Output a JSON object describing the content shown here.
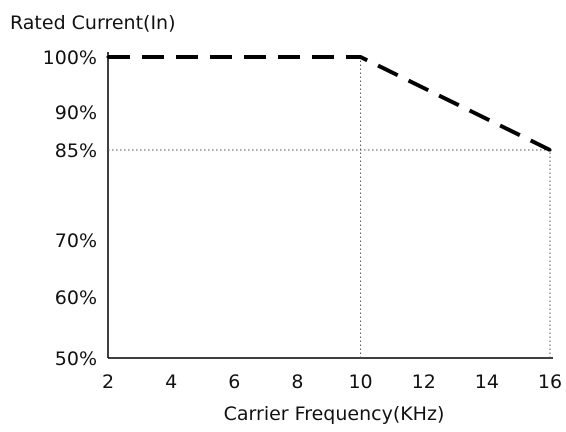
{
  "chart_data": {
    "type": "line",
    "ylabel": "Rated Current(In)",
    "xlabel": "Carrier Frequency(KHz)",
    "x_ticks": [
      2,
      4,
      6,
      8,
      10,
      12,
      14,
      16
    ],
    "y_ticks": [
      50,
      60,
      70,
      85,
      90,
      100
    ],
    "y_tick_labels": [
      "50%",
      "60%",
      "70%",
      "85%",
      "90%",
      "100%"
    ],
    "xlim": [
      2,
      16
    ],
    "series": [
      {
        "x": [
          2,
          10,
          16
        ],
        "y": [
          100,
          100,
          85
        ],
        "style": "dashed",
        "color": "#000000"
      }
    ],
    "guides": [
      {
        "type": "vertical",
        "x": 10,
        "from_y": 50,
        "to_y": 100
      },
      {
        "type": "vertical",
        "x": 16,
        "from_y": 50,
        "to_y": 85
      },
      {
        "type": "horizontal",
        "y": 85,
        "from_x": 2,
        "to_x": 16
      }
    ],
    "grid": false,
    "colors": {
      "line": "#000000",
      "axis": "#000000",
      "guide": "#555555"
    }
  }
}
